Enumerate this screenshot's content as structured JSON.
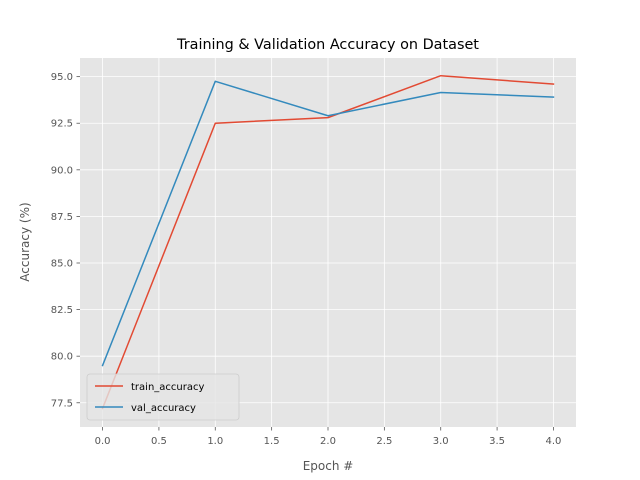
{
  "chart_data": {
    "type": "line",
    "title": "Training & Validation Accuracy on Dataset",
    "xlabel": "Epoch #",
    "ylabel": "Accuracy (%)",
    "x": [
      0,
      1,
      2,
      3,
      4
    ],
    "xlim": [
      -0.2,
      4.2
    ],
    "ylim": [
      76.2,
      96.0
    ],
    "xticks": [
      0.0,
      0.5,
      1.0,
      1.5,
      2.0,
      2.5,
      3.0,
      3.5,
      4.0
    ],
    "xtick_labels": [
      "0.0",
      "0.5",
      "1.0",
      "1.5",
      "2.0",
      "2.5",
      "3.0",
      "3.5",
      "4.0"
    ],
    "yticks": [
      77.5,
      80.0,
      82.5,
      85.0,
      87.5,
      90.0,
      92.5,
      95.0
    ],
    "ytick_labels": [
      "77.5",
      "80.0",
      "82.5",
      "85.0",
      "87.5",
      "90.0",
      "92.5",
      "95.0"
    ],
    "grid": true,
    "legend_position": "lower-left",
    "series": [
      {
        "name": "train_accuracy",
        "color": "#E24A33",
        "values": [
          77.2,
          92.5,
          92.8,
          95.05,
          94.6
        ]
      },
      {
        "name": "val_accuracy",
        "color": "#348ABD",
        "values": [
          79.5,
          94.75,
          92.9,
          94.15,
          93.9
        ]
      }
    ],
    "colors": {
      "plot_background": "#E5E5E5",
      "grid": "#FFFFFF"
    }
  }
}
